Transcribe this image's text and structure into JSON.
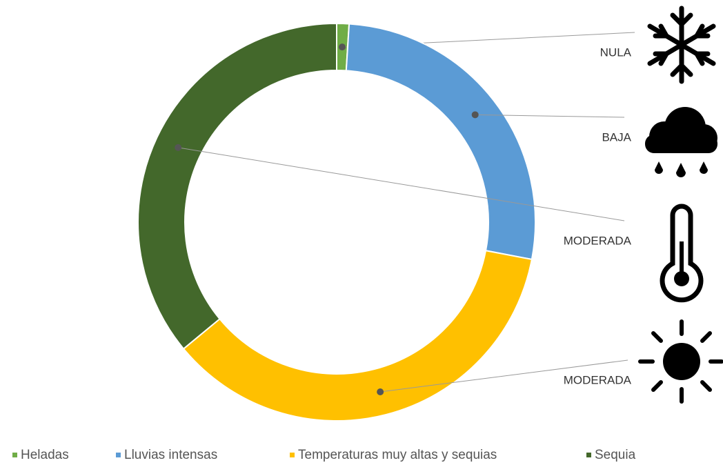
{
  "chart_data": {
    "type": "donut",
    "categories": [
      "Heladas",
      "Lluvias intensas",
      "Temperaturas muy altas y sequias",
      "Sequia"
    ],
    "values": [
      1,
      27,
      36,
      36
    ],
    "colors": [
      "#70ad47",
      "#5b9bd5",
      "#ffc000",
      "#43682b"
    ],
    "annotations": [
      "NULA",
      "BAJA",
      "MODERADA",
      "MODERADA"
    ],
    "legend": "bottom"
  }
}
